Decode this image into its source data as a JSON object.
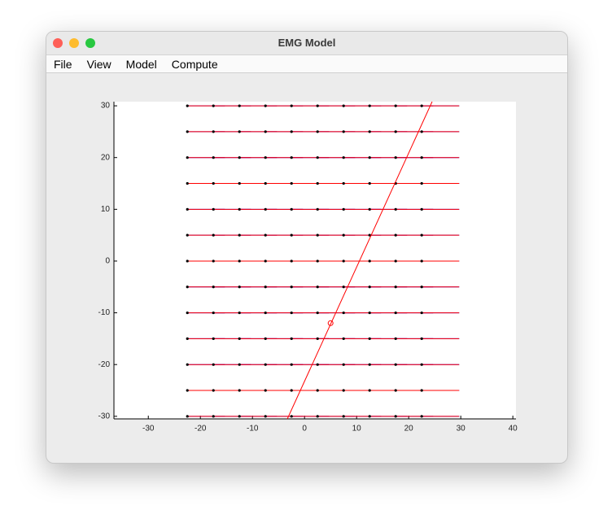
{
  "window": {
    "title": "EMG Model",
    "menu": [
      "File",
      "View",
      "Model",
      "Compute"
    ]
  },
  "chart_data": {
    "type": "electrode-map",
    "xlim": [
      -36.6,
      40.6
    ],
    "ylim": [
      -30.5,
      30.8
    ],
    "xticks": [
      -30,
      -20,
      -10,
      0,
      10,
      20,
      30,
      40
    ],
    "yticks": [
      -30,
      -20,
      -10,
      0,
      10,
      20,
      30
    ],
    "electrodes": {
      "x": [
        -22.5,
        -17.5,
        -12.5,
        -7.5,
        -2.5,
        2.5,
        7.5,
        12.5,
        17.5,
        22.5
      ],
      "y": [
        30,
        25,
        20,
        15,
        10,
        5,
        0,
        -5,
        -10,
        -15,
        -20,
        -25,
        -30
      ]
    },
    "fiber_line": {
      "x": [
        -3.3,
        24.5
      ],
      "y": [
        -30.5,
        30.8
      ],
      "color": "#ff0000"
    },
    "marker": {
      "x": 5,
      "y": -12,
      "color": "#ff0000"
    },
    "trace_colors": [
      "#0000ff",
      "#ff0000"
    ]
  }
}
